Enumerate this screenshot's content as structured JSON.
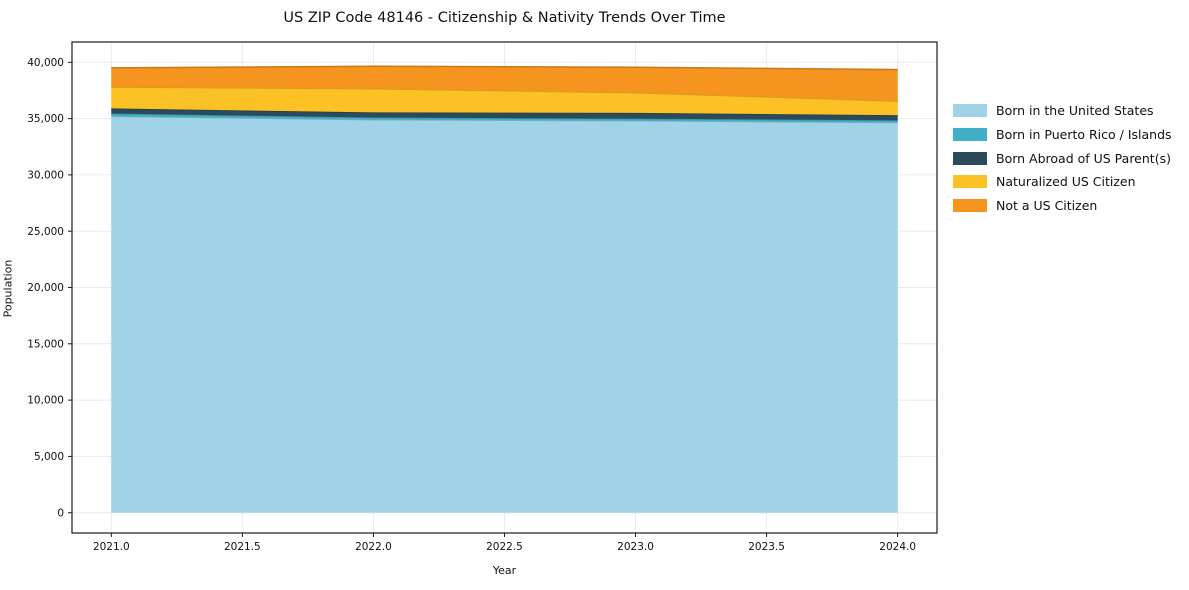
{
  "chart_data": {
    "type": "area",
    "stacked": true,
    "title": "US ZIP Code 48146 - Citizenship & Nativity Trends Over Time",
    "xlabel": "Year",
    "ylabel": "Population",
    "x": [
      2021,
      2022,
      2023,
      2024
    ],
    "series": [
      {
        "name": "Born in the United States",
        "color": "#a1d3e8",
        "values": [
          35200,
          34900,
          34800,
          34650
        ]
      },
      {
        "name": "Born in Puerto Rico / Islands",
        "color": "#41afc5",
        "values": [
          250,
          200,
          200,
          200
        ]
      },
      {
        "name": "Born Abroad of US Parent(s)",
        "color": "#2b4a5b",
        "values": [
          450,
          450,
          500,
          450
        ]
      },
      {
        "name": "Naturalized US Citizen",
        "color": "#fcc125",
        "values": [
          1900,
          2100,
          1800,
          1250
        ]
      },
      {
        "name": "Not a US Citizen",
        "color": "#f5941f",
        "values": [
          1700,
          2000,
          2250,
          2800
        ]
      }
    ],
    "totals": [
      39500,
      39650,
      39550,
      39350
    ],
    "xticks": {
      "values": [
        2021.0,
        2021.5,
        2022.0,
        2022.5,
        2023.0,
        2023.5,
        2024.0
      ],
      "labels": [
        "2021.0",
        "2021.5",
        "2022.0",
        "2022.5",
        "2023.0",
        "2023.5",
        "2024.0"
      ]
    },
    "yticks": {
      "values": [
        0,
        5000,
        10000,
        15000,
        20000,
        25000,
        30000,
        35000,
        40000
      ],
      "labels": [
        "0",
        "5,000",
        "10,000",
        "15,000",
        "20,000",
        "25,000",
        "30,000",
        "35,000",
        "40,000"
      ]
    },
    "xlim": [
      2020.85,
      2024.15
    ],
    "ylim": [
      -1800,
      41800
    ],
    "grid": true,
    "legend_position": "right-outside",
    "colors": {
      "grid": "#ebebeb",
      "spine": "#1a1a1a",
      "text": "#111111",
      "background": "#ffffff"
    }
  }
}
